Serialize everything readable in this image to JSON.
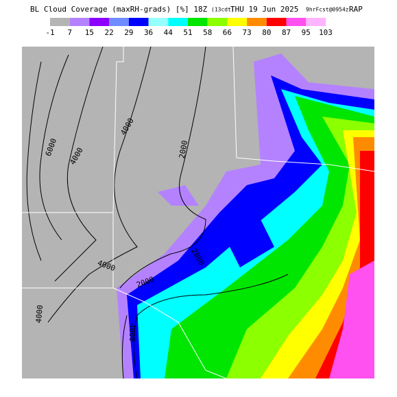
{
  "header": {
    "title": "BL Cloud Coverage (maxRH-grads) [%] 18Z",
    "local_time": "(13cdt)",
    "date": "THU 19 Jun 2025",
    "forecast": "9hrFcst@0954z",
    "model": "RAP"
  },
  "colorbar": {
    "ticks": [
      -1,
      7,
      15,
      22,
      29,
      36,
      44,
      51,
      58,
      66,
      73,
      80,
      87,
      95,
      103
    ],
    "colors": [
      "#b4b4b4",
      "#b482ff",
      "#8c00ff",
      "#6e8cff",
      "#0000ff",
      "#96ffff",
      "#00ffff",
      "#00e600",
      "#8cff00",
      "#ffff00",
      "#ff8c00",
      "#ff0000",
      "#ff50f0",
      "#ffb4ff"
    ]
  },
  "contour_labels": [
    "6000",
    "4000",
    "4000",
    "2000",
    "4000",
    "2000",
    "2000",
    "4000",
    "4000"
  ]
}
